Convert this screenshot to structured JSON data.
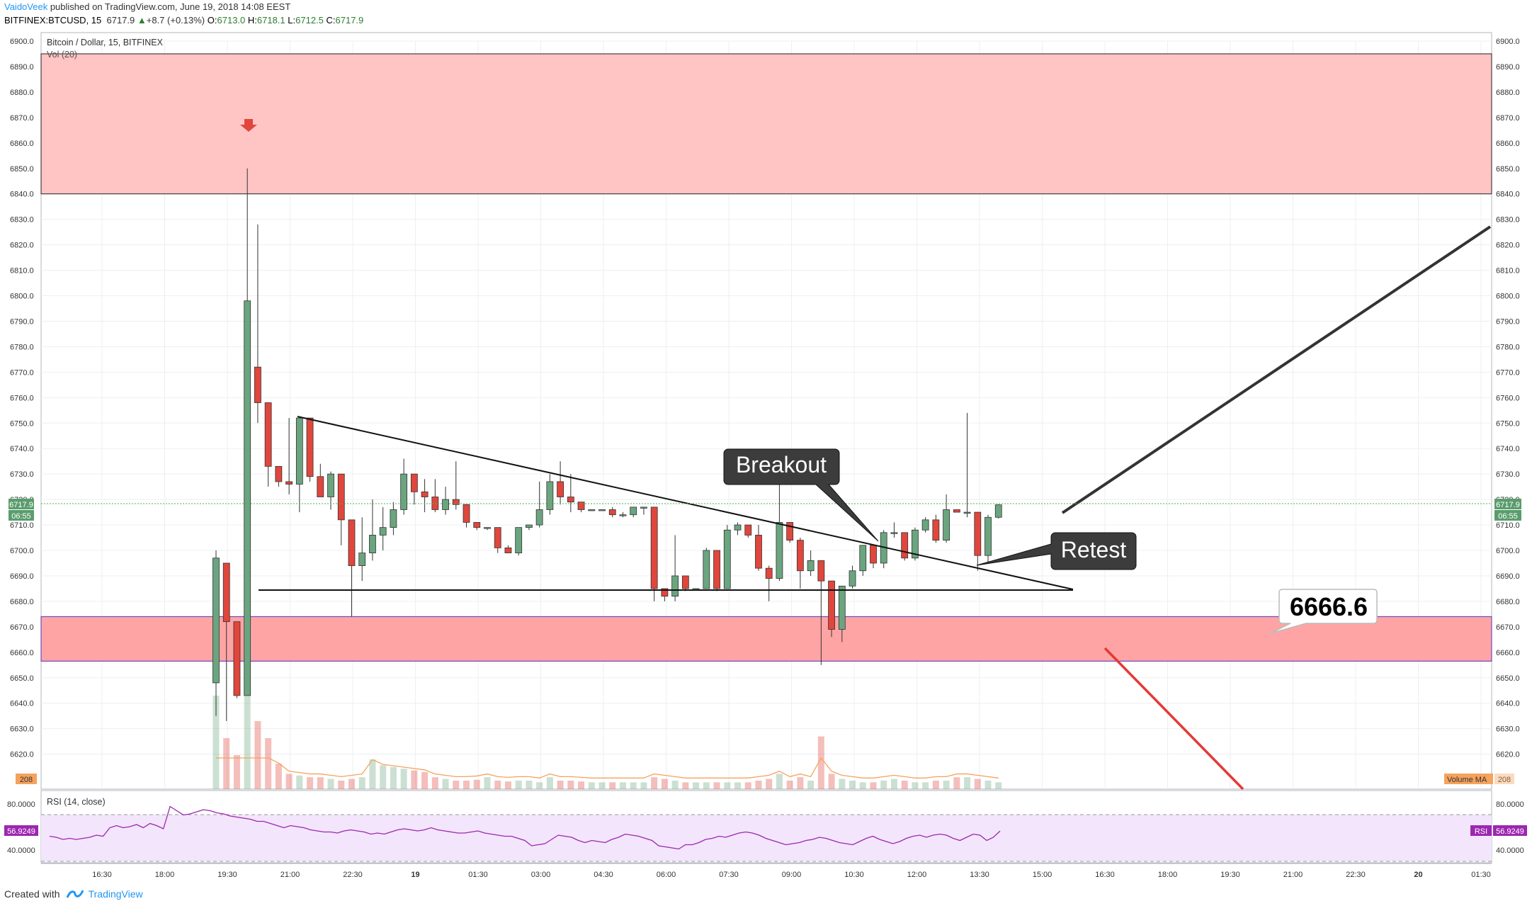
{
  "header": {
    "author": "VaidoVeek",
    "published": "published on TradingView.com, June 19, 2018 14:08 EEST",
    "symbol": "BITFINEX:BTCUSD, 15",
    "last": "6717.9",
    "change_arrow": "▲",
    "change": "+8.7 (+0.13%)",
    "o_label": "O:",
    "o": "6713.0",
    "h_label": "H:",
    "h": "6718.1",
    "l_label": "L:",
    "l": "6712.5",
    "c_label": "C:",
    "c": "6717.9"
  },
  "pane": {
    "title": "Bitcoin / Dollar, 15, BITFINEX",
    "vol_label": "Vol (20)",
    "rsi_label": "RSI (14, close)",
    "rsi_value": "56.9249",
    "rsi_tag": "RSI",
    "price_tag": "6717.9",
    "countdown": "06:55",
    "volume_ma_label": "Volume MA",
    "volume_ma_value": "208",
    "volume_left_value": "208"
  },
  "annotations": {
    "breakout": "Breakout",
    "retest": "Retest",
    "level": "6666.6"
  },
  "footer": {
    "created_with": "Created with",
    "brand": "TradingView"
  },
  "colors": {
    "bull": "#6aa57f",
    "bear": "#e0463c",
    "zone_top": "#ffc4c4",
    "zone_bottom": "#ffa4a4",
    "rsi_band": "#f3e5fb",
    "rsi_line": "#9c27b0",
    "price_tag_bg": "#5a9d6d",
    "accent_link": "#2196f3"
  },
  "chart_data": {
    "type": "candlestick",
    "title": "Bitcoin / Dollar, 15, BITFINEX",
    "price_ticks": [
      6900.0,
      6890.0,
      6880.0,
      6870.0,
      6860.0,
      6850.0,
      6840.0,
      6830.0,
      6820.0,
      6810.0,
      6800.0,
      6790.0,
      6780.0,
      6770.0,
      6760.0,
      6750.0,
      6740.0,
      6730.0,
      6720.0,
      6710.0,
      6700.0,
      6690.0,
      6680.0,
      6670.0,
      6660.0,
      6650.0,
      6640.0,
      6630.0,
      6620.0
    ],
    "ylim": [
      6610,
      6902
    ],
    "time_ticks": [
      "16:30",
      "18:00",
      "19:30",
      "21:00",
      "22:30",
      "19",
      "01:30",
      "03:00",
      "04:30",
      "06:00",
      "07:30",
      "09:00",
      "10:30",
      "12:00",
      "13:30",
      "15:00",
      "16:30",
      "18:00",
      "19:30",
      "21:00",
      "22:30",
      "20",
      "01:30"
    ],
    "rsi_ticks": [
      "80.0000",
      "40.0000"
    ],
    "resistance_zone": [
      6840,
      6895
    ],
    "support_zone": [
      6656.5,
      6674
    ],
    "support_line": 6684,
    "candles": [
      {
        "o": 6648,
        "h": 6700,
        "l": 6635,
        "c": 6697
      },
      {
        "o": 6695,
        "h": 6695,
        "l": 6633,
        "c": 6672
      },
      {
        "o": 6672,
        "h": 6672,
        "l": 6642,
        "c": 6643
      },
      {
        "o": 6643,
        "h": 6850,
        "l": 6643,
        "c": 6798
      },
      {
        "o": 6772,
        "h": 6828,
        "l": 6750,
        "c": 6758
      },
      {
        "o": 6758,
        "h": 6758,
        "l": 6725,
        "c": 6733
      },
      {
        "o": 6733,
        "h": 6733,
        "l": 6725,
        "c": 6727
      },
      {
        "o": 6727,
        "h": 6752,
        "l": 6722,
        "c": 6726
      },
      {
        "o": 6726,
        "h": 6752,
        "l": 6715,
        "c": 6752
      },
      {
        "o": 6752,
        "h": 6752,
        "l": 6727,
        "c": 6729
      },
      {
        "o": 6729,
        "h": 6734,
        "l": 6721,
        "c": 6721
      },
      {
        "o": 6721,
        "h": 6731,
        "l": 6716,
        "c": 6730
      },
      {
        "o": 6730,
        "h": 6730,
        "l": 6702,
        "c": 6712
      },
      {
        "o": 6712,
        "h": 6712,
        "l": 6674,
        "c": 6694
      },
      {
        "o": 6694,
        "h": 6713,
        "l": 6688,
        "c": 6699
      },
      {
        "o": 6699,
        "h": 6720,
        "l": 6696,
        "c": 6706
      },
      {
        "o": 6706,
        "h": 6717,
        "l": 6700,
        "c": 6709
      },
      {
        "o": 6709,
        "h": 6719,
        "l": 6706,
        "c": 6716
      },
      {
        "o": 6716,
        "h": 6736,
        "l": 6714,
        "c": 6730
      },
      {
        "o": 6730,
        "h": 6730,
        "l": 6718,
        "c": 6723
      },
      {
        "o": 6723,
        "h": 6728,
        "l": 6715,
        "c": 6721
      },
      {
        "o": 6721,
        "h": 6728,
        "l": 6715,
        "c": 6716
      },
      {
        "o": 6716,
        "h": 6725,
        "l": 6714,
        "c": 6720
      },
      {
        "o": 6720,
        "h": 6735,
        "l": 6716,
        "c": 6718
      },
      {
        "o": 6718,
        "h": 6718,
        "l": 6709,
        "c": 6711
      },
      {
        "o": 6711,
        "h": 6711,
        "l": 6708,
        "c": 6709
      },
      {
        "o": 6709,
        "h": 6709,
        "l": 6708,
        "c": 6709
      },
      {
        "o": 6709,
        "h": 6709,
        "l": 6699,
        "c": 6701
      },
      {
        "o": 6701,
        "h": 6702,
        "l": 6699,
        "c": 6699
      },
      {
        "o": 6699,
        "h": 6709,
        "l": 6698,
        "c": 6709
      },
      {
        "o": 6709,
        "h": 6710,
        "l": 6708,
        "c": 6710
      },
      {
        "o": 6710,
        "h": 6727,
        "l": 6709,
        "c": 6716
      },
      {
        "o": 6716,
        "h": 6730,
        "l": 6714,
        "c": 6727
      },
      {
        "o": 6727,
        "h": 6735,
        "l": 6718,
        "c": 6721
      },
      {
        "o": 6721,
        "h": 6730,
        "l": 6715,
        "c": 6719
      },
      {
        "o": 6719,
        "h": 6719,
        "l": 6715,
        "c": 6716
      },
      {
        "o": 6716,
        "h": 6716,
        "l": 6716,
        "c": 6716
      },
      {
        "o": 6716,
        "h": 6716,
        "l": 6716,
        "c": 6716
      },
      {
        "o": 6716,
        "h": 6717,
        "l": 6713,
        "c": 6714
      },
      {
        "o": 6714,
        "h": 6715,
        "l": 6713,
        "c": 6714
      },
      {
        "o": 6714,
        "h": 6717,
        "l": 6713,
        "c": 6717
      },
      {
        "o": 6717,
        "h": 6717,
        "l": 6714,
        "c": 6717
      },
      {
        "o": 6717,
        "h": 6717,
        "l": 6680,
        "c": 6685
      },
      {
        "o": 6685,
        "h": 6685,
        "l": 6680,
        "c": 6682
      },
      {
        "o": 6682,
        "h": 6706,
        "l": 6680,
        "c": 6690
      },
      {
        "o": 6690,
        "h": 6690,
        "l": 6684,
        "c": 6685
      },
      {
        "o": 6685,
        "h": 6685,
        "l": 6685,
        "c": 6685
      },
      {
        "o": 6685,
        "h": 6701,
        "l": 6685,
        "c": 6700
      },
      {
        "o": 6700,
        "h": 6700,
        "l": 6684,
        "c": 6685
      },
      {
        "o": 6685,
        "h": 6710,
        "l": 6685,
        "c": 6708
      },
      {
        "o": 6708,
        "h": 6711,
        "l": 6706,
        "c": 6710
      },
      {
        "o": 6710,
        "h": 6710,
        "l": 6705,
        "c": 6706
      },
      {
        "o": 6706,
        "h": 6710,
        "l": 6692,
        "c": 6693
      },
      {
        "o": 6693,
        "h": 6694,
        "l": 6680,
        "c": 6689
      },
      {
        "o": 6689,
        "h": 6726,
        "l": 6688,
        "c": 6711
      },
      {
        "o": 6711,
        "h": 6711,
        "l": 6703,
        "c": 6704
      },
      {
        "o": 6704,
        "h": 6705,
        "l": 6685,
        "c": 6692
      },
      {
        "o": 6692,
        "h": 6700,
        "l": 6690,
        "c": 6696
      },
      {
        "o": 6696,
        "h": 6696,
        "l": 6655,
        "c": 6688
      },
      {
        "o": 6688,
        "h": 6688,
        "l": 6666,
        "c": 6669
      },
      {
        "o": 6669,
        "h": 6686,
        "l": 6664,
        "c": 6686
      },
      {
        "o": 6686,
        "h": 6694,
        "l": 6685,
        "c": 6692
      },
      {
        "o": 6692,
        "h": 6702,
        "l": 6690,
        "c": 6702
      },
      {
        "o": 6702,
        "h": 6702,
        "l": 6693,
        "c": 6695
      },
      {
        "o": 6695,
        "h": 6708,
        "l": 6693,
        "c": 6707
      },
      {
        "o": 6707,
        "h": 6711,
        "l": 6705,
        "c": 6707
      },
      {
        "o": 6707,
        "h": 6707,
        "l": 6696,
        "c": 6697
      },
      {
        "o": 6697,
        "h": 6709,
        "l": 6696,
        "c": 6708
      },
      {
        "o": 6708,
        "h": 6713,
        "l": 6707,
        "c": 6712
      },
      {
        "o": 6712,
        "h": 6714,
        "l": 6703,
        "c": 6704
      },
      {
        "o": 6704,
        "h": 6722,
        "l": 6703,
        "c": 6716
      },
      {
        "o": 6716,
        "h": 6716,
        "l": 6715,
        "c": 6715
      },
      {
        "o": 6715,
        "h": 6754,
        "l": 6713,
        "c": 6715
      },
      {
        "o": 6715,
        "h": 6715,
        "l": 6692,
        "c": 6698
      },
      {
        "o": 6698,
        "h": 6714,
        "l": 6695,
        "c": 6713
      },
      {
        "o": 6713,
        "h": 6718.1,
        "l": 6712.5,
        "c": 6717.9
      }
    ],
    "volume": [
      110,
      60,
      40,
      120,
      80,
      60,
      30,
      18,
      16,
      14,
      14,
      12,
      10,
      12,
      14,
      35,
      28,
      26,
      24,
      22,
      20,
      14,
      12,
      10,
      10,
      11,
      14,
      10,
      9,
      10,
      10,
      8,
      14,
      10,
      10,
      9,
      8,
      8,
      8,
      8,
      8,
      8,
      14,
      12,
      10,
      8,
      8,
      8,
      8,
      8,
      8,
      8,
      10,
      12,
      18,
      10,
      14,
      10,
      62,
      18,
      12,
      10,
      8,
      8,
      10,
      12,
      10,
      8,
      8,
      10,
      10,
      14,
      14,
      12,
      10,
      8
    ],
    "rsi": [
      52,
      51,
      49,
      50,
      49,
      50,
      51,
      53,
      52,
      60,
      62,
      60,
      61,
      63,
      60,
      64,
      62,
      59,
      80,
      76,
      72,
      73,
      75,
      77,
      76,
      74,
      73,
      71,
      70,
      69,
      68,
      66,
      66,
      64,
      62,
      60,
      62,
      61,
      60,
      58,
      57,
      56,
      56,
      55,
      57,
      58,
      57,
      56,
      54,
      55,
      54,
      56,
      58,
      59,
      58,
      57,
      58,
      60,
      58,
      57,
      56,
      55,
      55,
      56,
      57,
      55,
      54,
      53,
      52,
      52,
      50,
      48,
      43,
      44,
      45,
      49,
      53,
      52,
      51,
      48,
      46,
      48,
      47,
      46,
      49,
      51,
      54,
      53,
      52,
      50,
      48,
      43,
      42,
      41,
      40,
      44,
      44,
      46,
      49,
      50,
      52,
      51,
      53,
      55,
      56,
      55,
      53,
      50,
      48,
      46,
      44,
      45,
      46,
      48,
      49,
      51,
      50,
      48,
      46,
      45,
      44,
      47,
      50,
      52,
      49,
      47,
      45,
      47,
      50,
      52,
      53,
      51,
      53,
      54,
      53,
      50,
      48,
      51,
      54,
      53,
      48,
      51,
      56.9
    ]
  }
}
